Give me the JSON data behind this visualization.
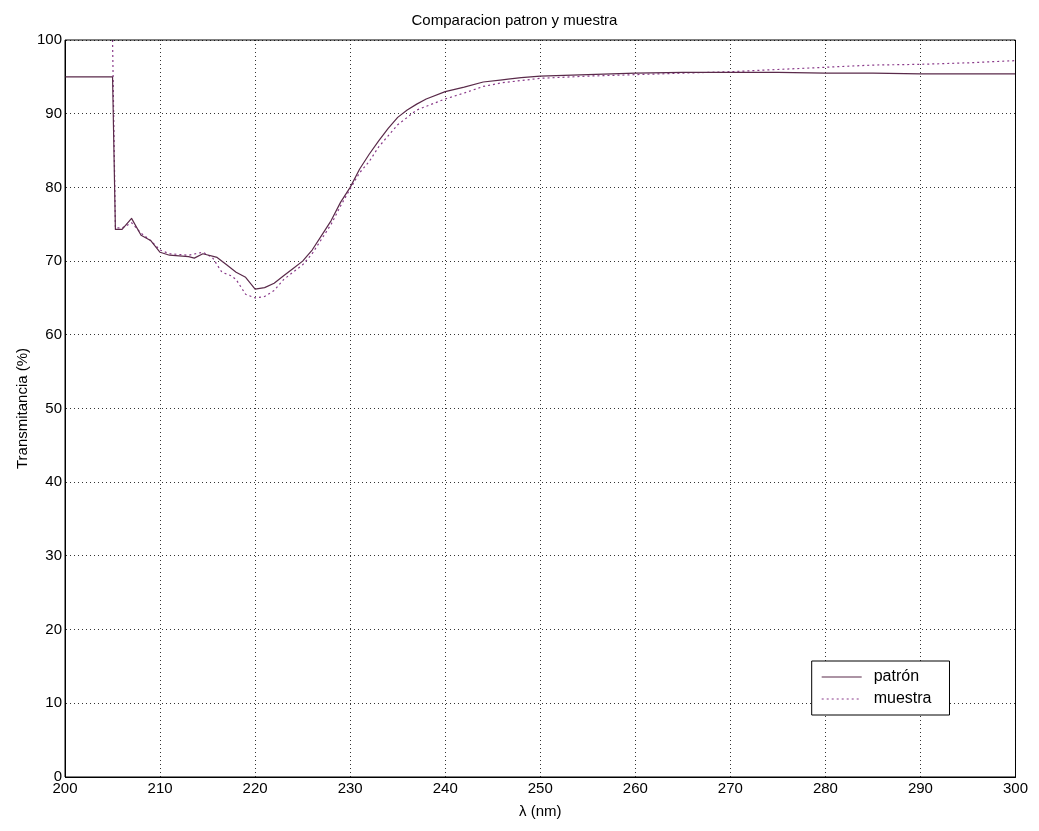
{
  "chart_data": {
    "type": "line",
    "title": "Comparacion patron y muestra",
    "xlabel": "λ (nm)",
    "ylabel": "Transmitancia (%)",
    "xlim": [
      200,
      300
    ],
    "xticks": [
      200,
      210,
      220,
      230,
      240,
      250,
      260,
      270,
      280,
      290,
      300
    ],
    "ylim": [
      0,
      100
    ],
    "yticks": [
      0,
      10,
      20,
      30,
      40,
      50,
      60,
      70,
      80,
      90,
      100
    ],
    "grid": true,
    "legend": "bottom right",
    "marker": "none",
    "series": [
      {
        "name": "patrón",
        "color": "#5a2a4a",
        "line_style": "solid",
        "x": [
          200,
          205,
          205.3,
          206,
          207,
          208,
          209,
          210,
          211,
          213,
          213.6,
          214.5,
          216,
          217,
          218,
          219,
          220,
          221,
          222,
          223,
          224,
          225,
          226,
          227,
          228,
          229,
          230,
          231,
          232,
          233,
          234,
          235,
          236,
          237,
          238,
          240,
          242,
          244,
          246,
          248,
          250,
          255,
          260,
          265,
          270,
          275,
          280,
          285,
          290,
          295,
          300
        ],
        "values": [
          95,
          95,
          74.3,
          74.3,
          75.8,
          73.5,
          72.8,
          71.2,
          70.8,
          70.6,
          70.4,
          71,
          70.5,
          69.5,
          68.5,
          67.8,
          66.2,
          66.4,
          67,
          68,
          69,
          70,
          71.5,
          73.5,
          75.5,
          78,
          80,
          82.5,
          84.5,
          86.3,
          88,
          89.5,
          90.5,
          91.3,
          92,
          93,
          93.6,
          94.3,
          94.6,
          94.9,
          95.1,
          95.3,
          95.5,
          95.6,
          95.6,
          95.6,
          95.5,
          95.5,
          95.4,
          95.4,
          95.4
        ]
      },
      {
        "name": "muestra",
        "color": "#8a3a8a",
        "line_style": "dotted",
        "x": [
          205,
          205.3,
          206,
          207,
          208,
          209,
          210,
          211,
          213,
          214.5,
          215.5,
          216.5,
          217.5,
          218,
          219,
          220,
          221,
          222,
          223,
          224,
          225,
          226,
          227,
          228,
          229,
          230,
          231,
          232,
          233,
          234,
          235,
          236,
          237,
          238,
          240,
          242,
          244,
          246,
          248,
          250,
          255,
          260,
          265,
          270,
          275,
          280,
          285,
          290,
          295,
          300
        ],
        "values": [
          100,
          74.5,
          74.5,
          75.2,
          73.8,
          72.8,
          71.5,
          71,
          70.8,
          71.2,
          70.5,
          68.5,
          68,
          67.5,
          65.5,
          65,
          65.2,
          66,
          67.5,
          68.5,
          69.5,
          71,
          73,
          75,
          77.5,
          79.8,
          82,
          83.5,
          85.5,
          87,
          88.5,
          89.5,
          90.5,
          91,
          92,
          92.8,
          93.7,
          94.2,
          94.5,
          94.8,
          95.1,
          95.3,
          95.5,
          95.7,
          96,
          96.3,
          96.6,
          96.7,
          96.9,
          97.2
        ]
      }
    ]
  }
}
